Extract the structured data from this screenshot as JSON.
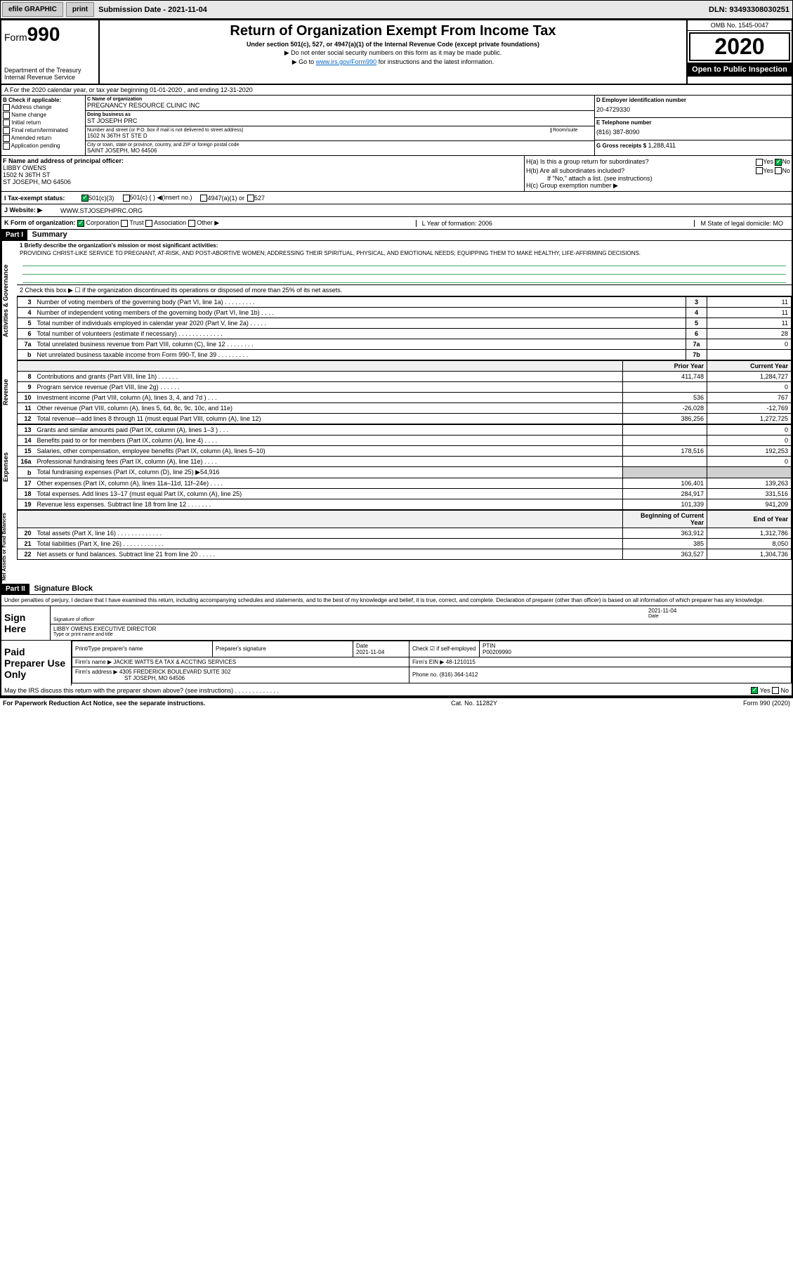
{
  "topbar": {
    "efile": "efile GRAPHIC",
    "print": "print",
    "submission_label": "Submission Date - 2021-11-04",
    "dln": "DLN: 93493308030251"
  },
  "header": {
    "form_word": "Form",
    "form_num": "990",
    "dept": "Department of the Treasury\nInternal Revenue Service",
    "title": "Return of Organization Exempt From Income Tax",
    "subtitle": "Under section 501(c), 527, or 4947(a)(1) of the Internal Revenue Code (except private foundations)",
    "note1": "▶ Do not enter social security numbers on this form as it may be made public.",
    "note2_pre": "▶ Go to ",
    "note2_link": "www.irs.gov/Form990",
    "note2_post": " for instructions and the latest information.",
    "omb": "OMB No. 1545-0047",
    "year": "2020",
    "open_public": "Open to Public Inspection"
  },
  "row_a": "A For the 2020 calendar year, or tax year beginning 01-01-2020    , and ending 12-31-2020",
  "col_b": {
    "title": "B Check if applicable:",
    "opts": [
      "Address change",
      "Name change",
      "Initial return",
      "Final return/terminated",
      "Amended return",
      "Application pending"
    ]
  },
  "col_c": {
    "name_lbl": "C Name of organization",
    "name": "PREGNANCY RESOURCE CLINIC INC",
    "dba_lbl": "Doing business as",
    "dba": "ST JOSEPH PRC",
    "addr_lbl": "Number and street (or P.O. box if mail is not delivered to street address)",
    "room_lbl": "Room/suite",
    "addr": "1502 N 36TH ST STE D",
    "city_lbl": "City or town, state or province, country, and ZIP or foreign postal code",
    "city": "SAINT JOSEPH, MO  64506"
  },
  "col_d": {
    "lbl": "D Employer identification number",
    "val": "20-4729330"
  },
  "col_e": {
    "lbl": "E Telephone number",
    "val": "(816) 387-8090"
  },
  "col_g": {
    "lbl": "G Gross receipts $",
    "val": "1,288,411"
  },
  "col_f": {
    "lbl": "F  Name and address of principal officer:",
    "name": "LIBBY OWENS",
    "addr1": "1502 N 36TH ST",
    "addr2": "ST JOSEPH, MO  64506"
  },
  "col_h": {
    "ha": "H(a)  Is this a group return for subordinates?",
    "ha_yes": "Yes",
    "ha_no": "No",
    "hb": "H(b)  Are all subordinates included?",
    "hb_yes": "Yes",
    "hb_no": "No",
    "hb_note": "If \"No,\" attach a list. (see instructions)",
    "hc": "H(c)  Group exemption number ▶"
  },
  "row_i": {
    "lbl": "I  Tax-exempt status:",
    "opt1": "501(c)(3)",
    "opt2": "501(c) (  ) ◀(insert no.)",
    "opt3": "4947(a)(1) or",
    "opt4": "527"
  },
  "row_j": {
    "lbl": "J  Website: ▶",
    "val": "WWW.STJOSEPHPRC.ORG"
  },
  "row_k": {
    "lbl": "K Form of organization:",
    "opts": [
      "Corporation",
      "Trust",
      "Association",
      "Other ▶"
    ],
    "l": "L Year of formation: 2006",
    "m": "M State of legal domicile: MO"
  },
  "part1": {
    "label": "Part I",
    "title": "Summary",
    "q1": "1  Briefly describe the organization's mission or most significant activities:",
    "mission": "PROVIDING CHRIST-LIKE SERVICE TO PREGNANT, AT-RISK, AND POST-ABORTIVE WOMEN; ADDRESSING THEIR SPIRITUAL, PHYSICAL, AND EMOTIONAL NEEDS; EQUIPPING THEM TO MAKE HEALTHY, LIFE-AFFIRMING DECISIONS.",
    "q2": "2  Check this box ▶ ☐  if the organization discontinued its operations or disposed of more than 25% of its net assets.",
    "sidebar_ag": "Activities & Governance",
    "sidebar_rev": "Revenue",
    "sidebar_exp": "Expenses",
    "sidebar_net": "Net Assets or Fund Balances",
    "lines_ag": [
      {
        "n": "3",
        "d": "Number of voting members of the governing body (Part VI, line 1a)  .  .  .  .  .  .  .  .  .",
        "c": "3",
        "v": "11"
      },
      {
        "n": "4",
        "d": "Number of independent voting members of the governing body (Part VI, line 1b)  .  .  .  .",
        "c": "4",
        "v": "11"
      },
      {
        "n": "5",
        "d": "Total number of individuals employed in calendar year 2020 (Part V, line 2a)  .  .  .  .  .",
        "c": "5",
        "v": "11"
      },
      {
        "n": "6",
        "d": "Total number of volunteers (estimate if necessary)   .  .  .  .  .  .  .  .  .  .  .  .  .",
        "c": "6",
        "v": "28"
      },
      {
        "n": "7a",
        "d": "Total unrelated business revenue from Part VIII, column (C), line 12  .  .  .  .  .  .  .  .",
        "c": "7a",
        "v": "0"
      },
      {
        "n": "b",
        "d": "Net unrelated business taxable income from Form 990-T, line 39   .  .  .  .  .  .  .  .  .",
        "c": "7b",
        "v": ""
      }
    ],
    "hdr_prior": "Prior Year",
    "hdr_current": "Current Year",
    "lines_rev": [
      {
        "n": "8",
        "d": "Contributions and grants (Part VIII, line 1h)  .  .  .  .  .  .",
        "p": "411,748",
        "c": "1,284,727"
      },
      {
        "n": "9",
        "d": "Program service revenue (Part VIII, line 2g)  .  .  .  .  .  .",
        "p": "",
        "c": "0"
      },
      {
        "n": "10",
        "d": "Investment income (Part VIII, column (A), lines 3, 4, and 7d )   .  .  .",
        "p": "536",
        "c": "767"
      },
      {
        "n": "11",
        "d": "Other revenue (Part VIII, column (A), lines 5, 6d, 8c, 9c, 10c, and 11e)",
        "p": "-26,028",
        "c": "-12,769"
      },
      {
        "n": "12",
        "d": "Total revenue—add lines 8 through 11 (must equal Part VIII, column (A), line 12)",
        "p": "386,256",
        "c": "1,272,725"
      }
    ],
    "lines_exp": [
      {
        "n": "13",
        "d": "Grants and similar amounts paid (Part IX, column (A), lines 1–3 )  .  .  .",
        "p": "",
        "c": "0"
      },
      {
        "n": "14",
        "d": "Benefits paid to or for members (Part IX, column (A), line 4)  .  .  .  .",
        "p": "",
        "c": "0"
      },
      {
        "n": "15",
        "d": "Salaries, other compensation, employee benefits (Part IX, column (A), lines 5–10)",
        "p": "178,516",
        "c": "192,253"
      },
      {
        "n": "16a",
        "d": "Professional fundraising fees (Part IX, column (A), line 11e)  .  .  .  .",
        "p": "",
        "c": "0"
      },
      {
        "n": "b",
        "d": "Total fundraising expenses (Part IX, column (D), line 25) ▶54,916",
        "p": "SHADED",
        "c": "SHADED"
      },
      {
        "n": "17",
        "d": "Other expenses (Part IX, column (A), lines 11a–11d, 11f–24e)  .  .  .  .",
        "p": "106,401",
        "c": "139,263"
      },
      {
        "n": "18",
        "d": "Total expenses. Add lines 13–17 (must equal Part IX, column (A), line 25)",
        "p": "284,917",
        "c": "331,516"
      },
      {
        "n": "19",
        "d": "Revenue less expenses. Subtract line 18 from line 12 .  .  .  .  .  .  .",
        "p": "101,339",
        "c": "941,209"
      }
    ],
    "hdr_begin": "Beginning of Current Year",
    "hdr_end": "End of Year",
    "lines_net": [
      {
        "n": "20",
        "d": "Total assets (Part X, line 16)  .  .  .  .  .  .  .  .  .  .  .  .  .",
        "p": "363,912",
        "c": "1,312,786"
      },
      {
        "n": "21",
        "d": "Total liabilities (Part X, line 26)  .  .  .  .  .  .  .  .  .  .  .  .",
        "p": "385",
        "c": "8,050"
      },
      {
        "n": "22",
        "d": "Net assets or fund balances. Subtract line 21 from line 20  .  .  .  .  .",
        "p": "363,527",
        "c": "1,304,736"
      }
    ]
  },
  "part2": {
    "label": "Part II",
    "title": "Signature Block",
    "penalty": "Under penalties of perjury, I declare that I have examined this return, including accompanying schedules and statements, and to the best of my knowledge and belief, it is true, correct, and complete. Declaration of preparer (other than officer) is based on all information of which preparer has any knowledge.",
    "sign_here": "Sign Here",
    "sig_officer_lbl": "Signature of officer",
    "sig_date": "2021-11-04",
    "sig_date_lbl": "Date",
    "sig_name": "LIBBY OWENS  EXECUTIVE DIRECTOR",
    "sig_name_lbl": "Type or print name and title",
    "paid": "Paid Preparer Use Only",
    "prep_name_lbl": "Print/Type preparer's name",
    "prep_sig_lbl": "Preparer's signature",
    "prep_date_lbl": "Date",
    "prep_date": "2021-11-04",
    "prep_check_lbl": "Check ☑ if self-employed",
    "ptin_lbl": "PTIN",
    "ptin": "P00209990",
    "firm_name_lbl": "Firm's name    ▶",
    "firm_name": "JACKIE WATTS EA TAX & ACCTING SERVICES",
    "firm_ein_lbl": "Firm's EIN ▶",
    "firm_ein": "48-1210115",
    "firm_addr_lbl": "Firm's address ▶",
    "firm_addr1": "4305 FREDERICK BOULEVARD SUITE 302",
    "firm_addr2": "ST JOSEPH, MO  64506",
    "phone_lbl": "Phone no.",
    "phone": "(816) 364-1412",
    "discuss": "May the IRS discuss this return with the preparer shown above? (see instructions)   .  .  .  .  .  .  .  .  .  .  .  .  .",
    "discuss_yes": "Yes",
    "discuss_no": "No"
  },
  "footer": {
    "paperwork": "For Paperwork Reduction Act Notice, see the separate instructions.",
    "cat": "Cat. No. 11282Y",
    "form": "Form 990 (2020)"
  }
}
